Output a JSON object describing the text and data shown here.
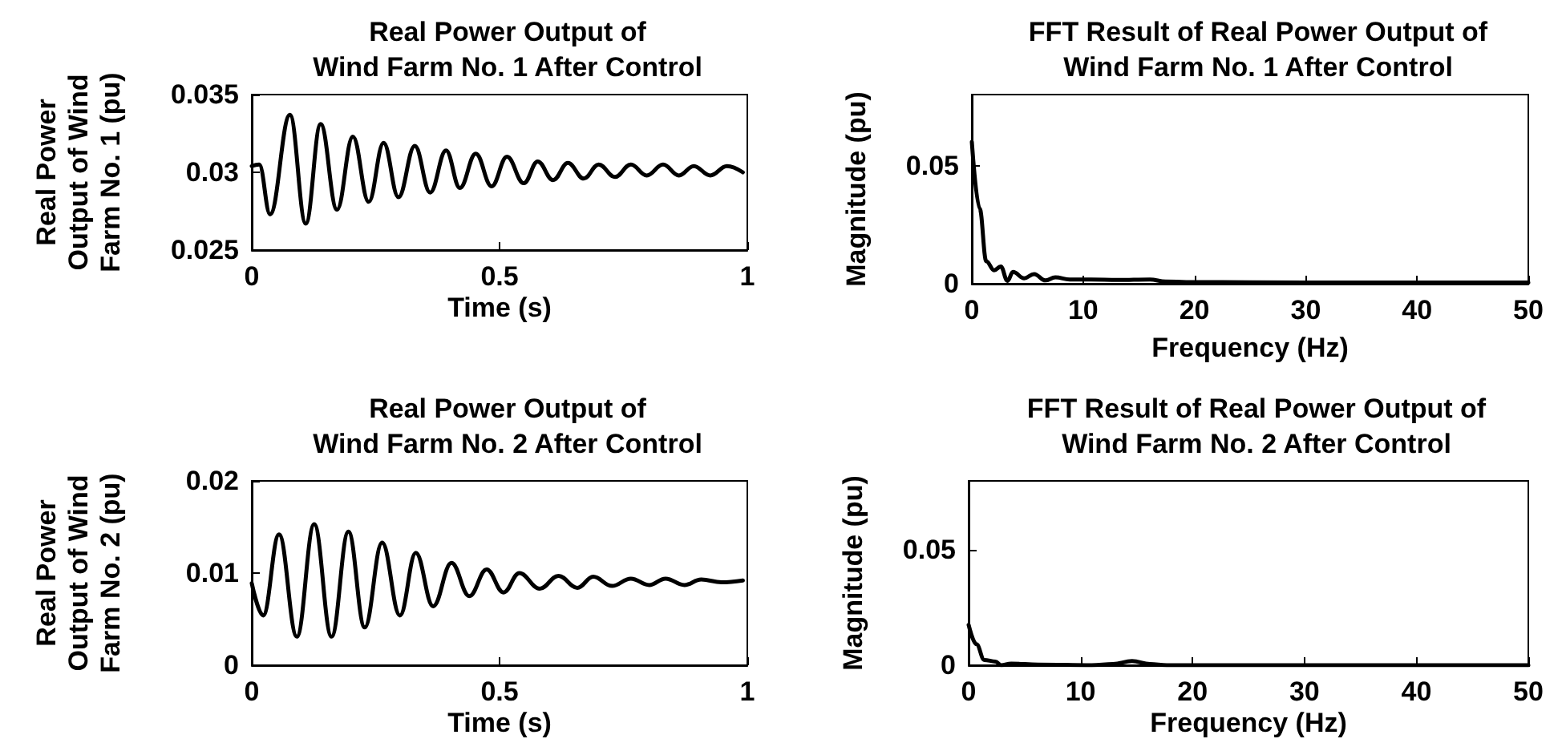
{
  "chart_data": [
    {
      "type": "line",
      "title": "Real Power Output of\nWind Farm No. 1 After Control",
      "xlabel": "Time (s)",
      "ylabel": "Real Power\nOutput of Wind\nFarm No. 1 (pu)",
      "xlim": [
        0,
        1
      ],
      "xticks": [
        0,
        0.5,
        1
      ],
      "ylim": [
        0.025,
        0.035
      ],
      "yticks": [
        0.025,
        0.03,
        0.035
      ],
      "x": [
        0,
        0.015,
        0.037,
        0.077,
        0.109,
        0.139,
        0.172,
        0.204,
        0.236,
        0.266,
        0.296,
        0.329,
        0.36,
        0.392,
        0.42,
        0.452,
        0.484,
        0.515,
        0.549,
        0.577,
        0.608,
        0.638,
        0.67,
        0.7,
        0.733,
        0.765,
        0.797,
        0.83,
        0.862,
        0.892,
        0.925,
        0.959,
        0.991
      ],
      "series": [
        {
          "color": "#000000",
          "values": [
            0.0304,
            0.0305,
            0.0273,
            0.0337,
            0.0267,
            0.0331,
            0.0276,
            0.0323,
            0.0281,
            0.0319,
            0.0284,
            0.0317,
            0.0287,
            0.0314,
            0.029,
            0.0312,
            0.0291,
            0.031,
            0.0293,
            0.0307,
            0.0295,
            0.0306,
            0.0296,
            0.0305,
            0.0297,
            0.0305,
            0.0298,
            0.0305,
            0.0298,
            0.0304,
            0.0298,
            0.0304,
            0.03
          ]
        }
      ]
    },
    {
      "type": "line",
      "title": "Real Power Output of\nWind Farm No. 2 After Control",
      "xlabel": "Time (s)",
      "ylabel": "Real Power\nOutput of Wind\nFarm No. 2 (pu)",
      "xlim": [
        0,
        1
      ],
      "xticks": [
        0,
        0.5,
        1
      ],
      "ylim": [
        0,
        0.02
      ],
      "yticks": [
        0,
        0.01,
        0.02
      ],
      "x": [
        0,
        0.023,
        0.055,
        0.091,
        0.126,
        0.161,
        0.195,
        0.228,
        0.263,
        0.299,
        0.331,
        0.366,
        0.403,
        0.439,
        0.474,
        0.508,
        0.54,
        0.581,
        0.619,
        0.657,
        0.689,
        0.727,
        0.765,
        0.802,
        0.835,
        0.873,
        0.907,
        0.948,
        0.991
      ],
      "series": [
        {
          "color": "#000000",
          "values": [
            0.0089,
            0.0054,
            0.0142,
            0.0031,
            0.0153,
            0.0031,
            0.0145,
            0.0041,
            0.0133,
            0.0054,
            0.0122,
            0.0064,
            0.0111,
            0.0075,
            0.0104,
            0.0079,
            0.01,
            0.0083,
            0.0097,
            0.0084,
            0.0096,
            0.0086,
            0.0094,
            0.0087,
            0.0094,
            0.0087,
            0.0093,
            0.009,
            0.0092
          ]
        }
      ]
    },
    {
      "type": "line",
      "title": "FFT Result of Real Power Output of\nWind Farm No. 1 After Control",
      "xlabel": "Frequency (Hz)",
      "ylabel": "Magnitude (pu)",
      "xlim": [
        0,
        50
      ],
      "xticks": [
        0,
        10,
        20,
        30,
        40,
        50
      ],
      "ylim": [
        0,
        0.08
      ],
      "yticks": [
        0,
        0.05
      ],
      "x": [
        0,
        0.7,
        1.3,
        2,
        2.6,
        3.2,
        3.7,
        4.7,
        5.6,
        6.6,
        7.5,
        8.8,
        10.7,
        13.1,
        16,
        17.4,
        20.3,
        29.9,
        39.5,
        50
      ],
      "series": [
        {
          "color": "#000000",
          "values": [
            0.06,
            0.0318,
            0.0095,
            0.0057,
            0.0073,
            0.0012,
            0.005,
            0.0023,
            0.0041,
            0.0014,
            0.0027,
            0.0018,
            0.0018,
            0.0016,
            0.0018,
            0.0009,
            0.0007,
            0.0005,
            0.0005,
            0.0005
          ]
        }
      ]
    },
    {
      "type": "line",
      "title": "FFT Result of Real Power Output of\nWind Farm No. 2 After Control",
      "xlabel": "Frequency (Hz)",
      "ylabel": "Magnitude (pu)",
      "xlim": [
        0,
        50
      ],
      "xticks": [
        0,
        10,
        20,
        30,
        40,
        50
      ],
      "ylim": [
        0,
        0.08
      ],
      "yticks": [
        0,
        0.05
      ],
      "x": [
        0,
        0.7,
        1.4,
        2.4,
        2.9,
        3.8,
        6.2,
        11,
        12.9,
        14.6,
        16.2,
        17.7,
        30,
        40,
        50
      ],
      "series": [
        {
          "color": "#000000",
          "values": [
            0.0175,
            0.0091,
            0.0023,
            0.0016,
            0,
            0.0007,
            0.0003,
            0,
            0.0005,
            0.0018,
            0.0005,
            0,
            0,
            0,
            0
          ]
        }
      ]
    }
  ]
}
